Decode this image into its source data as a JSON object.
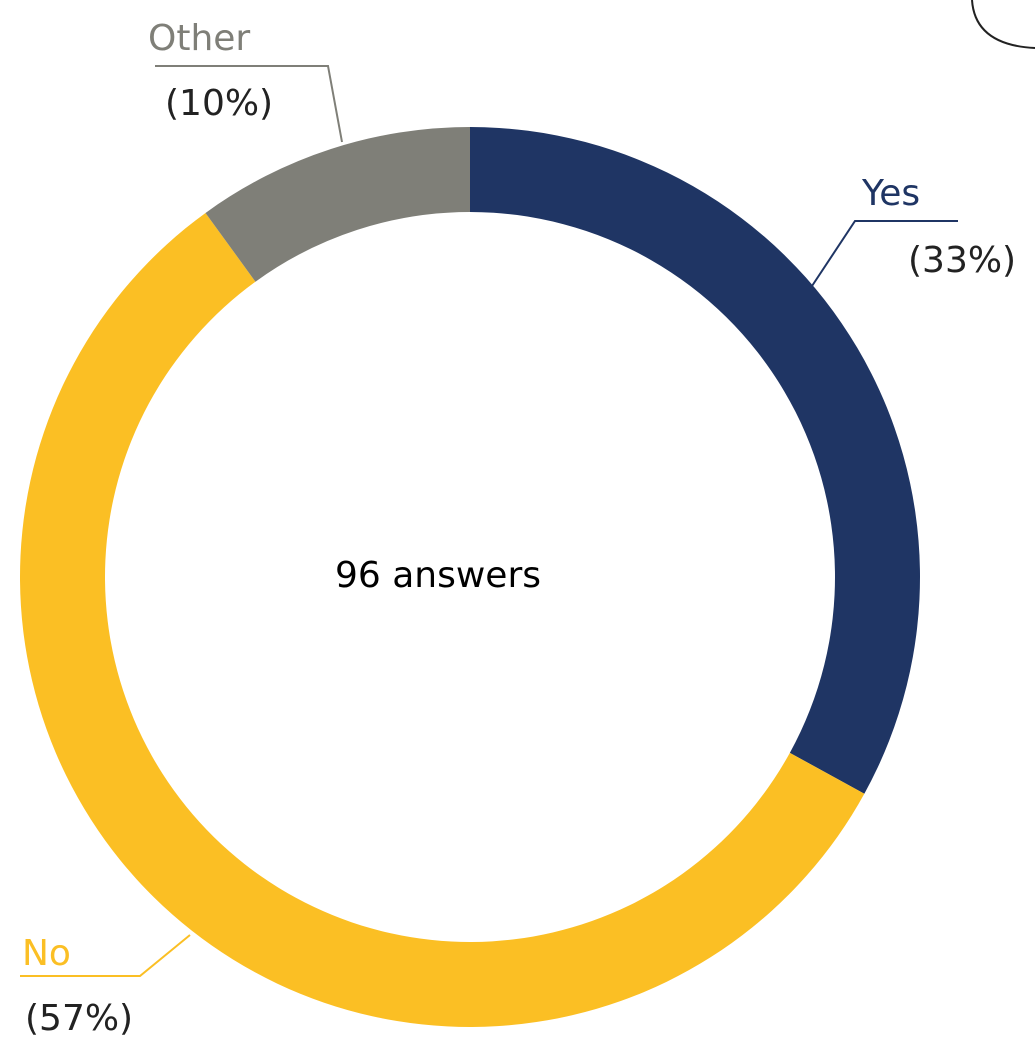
{
  "chart_data": {
    "type": "donut",
    "center_text": "96 answers",
    "categories": [
      "Yes",
      "No",
      "Other"
    ],
    "values": [
      33,
      57,
      10
    ],
    "value_labels": [
      "(33%)",
      "(57%)",
      "(10%)"
    ],
    "colors": [
      "#1f3564",
      "#fbbf24",
      "#7f7f78"
    ]
  }
}
